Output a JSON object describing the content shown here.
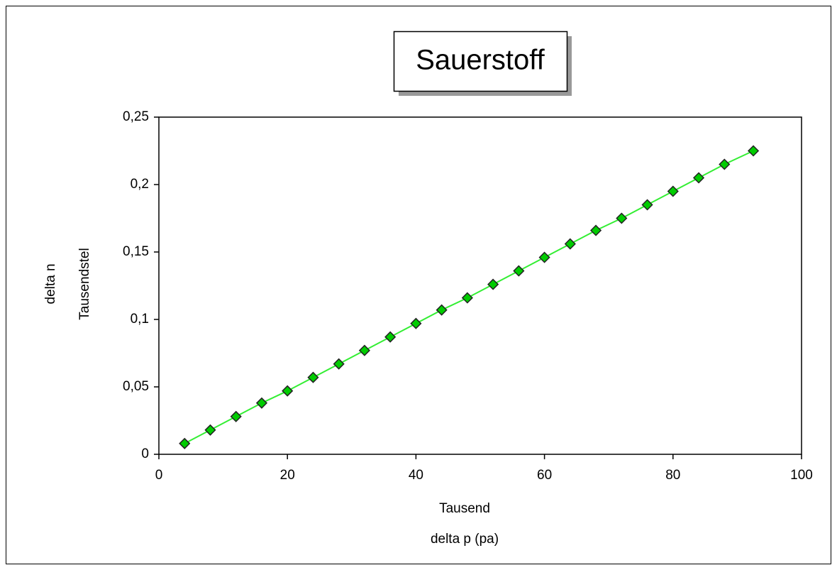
{
  "chart_data": {
    "type": "line",
    "title": "Sauerstoff",
    "ylabel": [
      "delta n",
      "Tausendstel"
    ],
    "xlabel": [
      "Tausend",
      "delta p (pa)"
    ],
    "xlim": [
      0,
      100
    ],
    "xticks": [
      0,
      20,
      40,
      60,
      80,
      100
    ],
    "ylim": [
      0,
      0.25
    ],
    "yticks": [
      0,
      {
        "value": 0.05,
        "label": "0,05"
      },
      {
        "value": 0.1,
        "label": "0,1"
      },
      {
        "value": 0.15,
        "label": "0,15"
      },
      {
        "value": 0.2,
        "label": "0,2"
      },
      {
        "value": 0.25,
        "label": "0,25"
      }
    ],
    "series": [
      {
        "color": "#33ee33",
        "marker_color": "#00cc00",
        "x": [
          4,
          8,
          12,
          16,
          20,
          24,
          28,
          32,
          36,
          40,
          44,
          48,
          52,
          56,
          60,
          64,
          68,
          72,
          76,
          80,
          84,
          88,
          92.5
        ],
        "values": [
          0.008,
          0.018,
          0.028,
          0.038,
          0.047,
          0.057,
          0.067,
          0.077,
          0.087,
          0.097,
          0.107,
          0.116,
          0.126,
          0.136,
          0.146,
          0.156,
          0.166,
          0.175,
          0.185,
          0.195,
          0.205,
          0.215,
          0.225
        ]
      }
    ]
  }
}
